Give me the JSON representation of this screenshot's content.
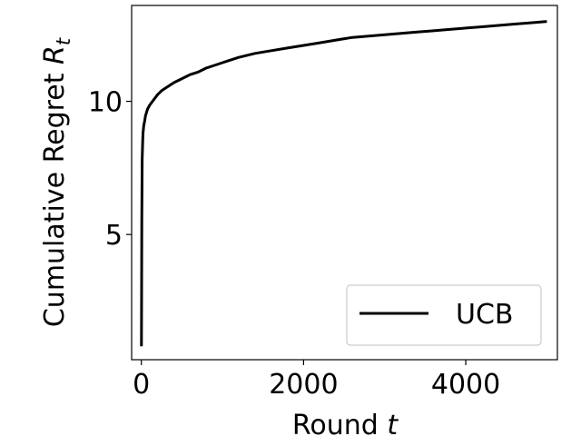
{
  "chart_data": {
    "type": "line",
    "xlabel": "Round",
    "xlabel_var": "t",
    "ylabel": "Cumulative Regret",
    "ylabel_var": "R",
    "ylabel_sub": "t",
    "xlim": [
      -120,
      5130
    ],
    "ylim": [
      0.3,
      13.6
    ],
    "xticks": [
      0,
      2000,
      4000
    ],
    "xtick_labels": [
      "0",
      "2000",
      "4000"
    ],
    "yticks": [
      5,
      10
    ],
    "ytick_labels": [
      "5",
      "10"
    ],
    "grid": false,
    "legend": {
      "position": "lower-right",
      "entries": [
        "UCB"
      ]
    },
    "series": [
      {
        "name": "UCB",
        "color": "#000000",
        "x": [
          1,
          3,
          5,
          10,
          15,
          20,
          30,
          40,
          50,
          75,
          100,
          150,
          200,
          250,
          300,
          400,
          500,
          600,
          700,
          800,
          900,
          1000,
          1100,
          1200,
          1400,
          1600,
          1800,
          2000,
          2200,
          2400,
          2600,
          2800,
          3000,
          3200,
          3400,
          3600,
          3800,
          4000,
          4200,
          4400,
          4600,
          4800,
          5000
        ],
        "y": [
          0.8,
          3.0,
          5.5,
          7.8,
          8.4,
          8.8,
          9.1,
          9.25,
          9.45,
          9.7,
          9.85,
          10.05,
          10.25,
          10.4,
          10.5,
          10.7,
          10.85,
          11.0,
          11.1,
          11.25,
          11.35,
          11.45,
          11.55,
          11.65,
          11.8,
          11.9,
          12.0,
          12.1,
          12.2,
          12.3,
          12.4,
          12.45,
          12.5,
          12.55,
          12.6,
          12.65,
          12.7,
          12.75,
          12.8,
          12.85,
          12.9,
          12.95,
          13.0
        ]
      }
    ]
  }
}
